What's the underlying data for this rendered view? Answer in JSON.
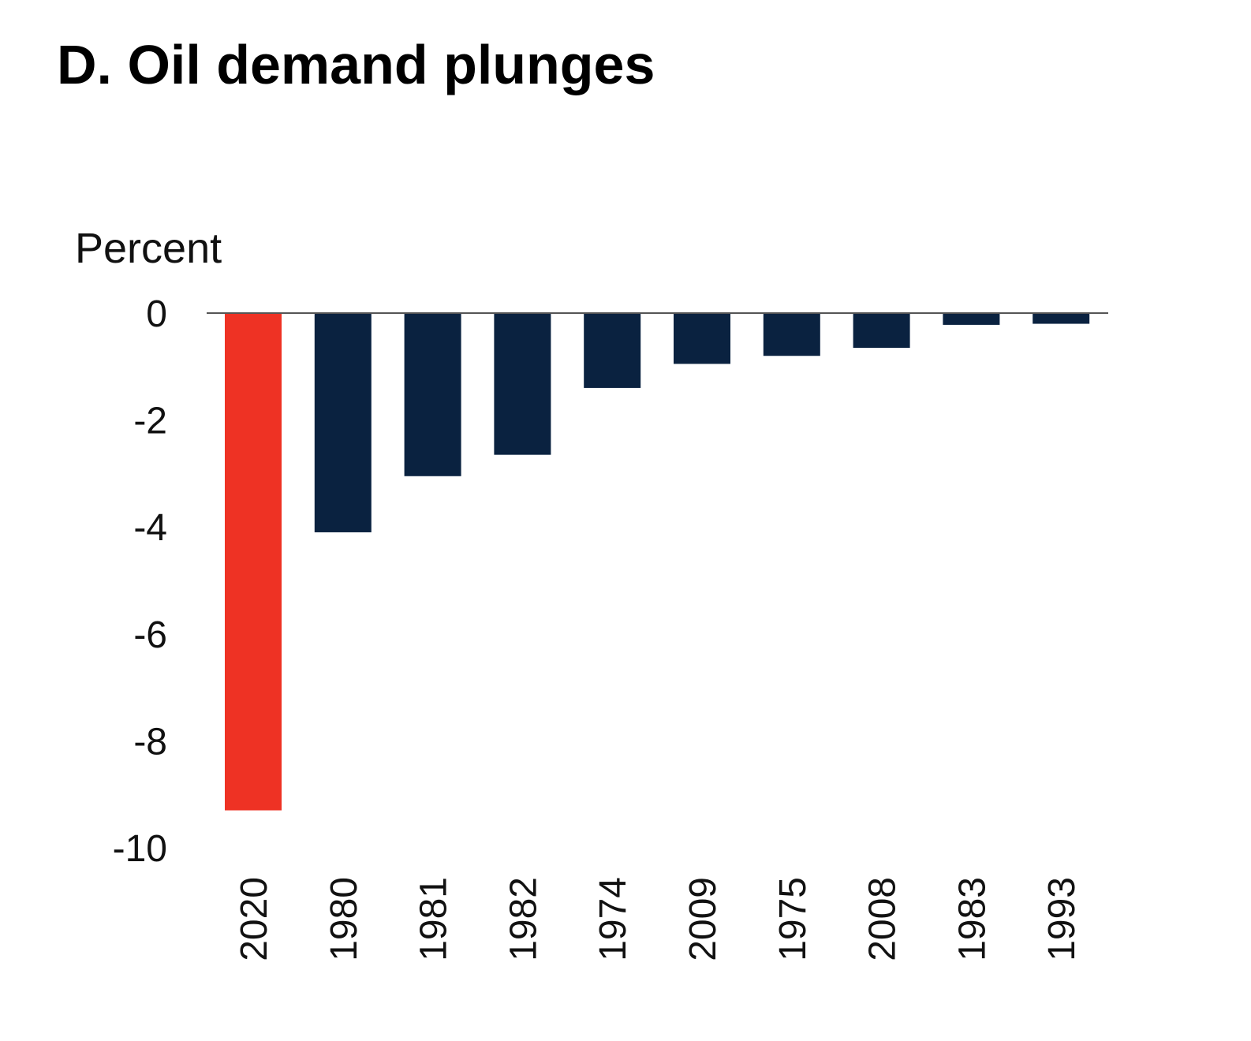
{
  "chart_data": {
    "type": "bar",
    "title": "D. Oil demand plunges",
    "ylabel": "Percent",
    "xlabel": "",
    "categories": [
      "2020",
      "1980",
      "1981",
      "1982",
      "1974",
      "2009",
      "1975",
      "2008",
      "1983",
      "1993"
    ],
    "values": [
      -9.3,
      -4.1,
      -3.05,
      -2.65,
      -1.4,
      -0.95,
      -0.8,
      -0.65,
      -0.22,
      -0.2
    ],
    "highlight": {
      "category": "2020",
      "color": "#ee3224"
    },
    "bar_color": "#0a2240",
    "ylim": [
      -10,
      0
    ],
    "yticks": [
      0,
      -2,
      -4,
      -6,
      -8,
      -10
    ],
    "grid": false,
    "legend": "none"
  }
}
